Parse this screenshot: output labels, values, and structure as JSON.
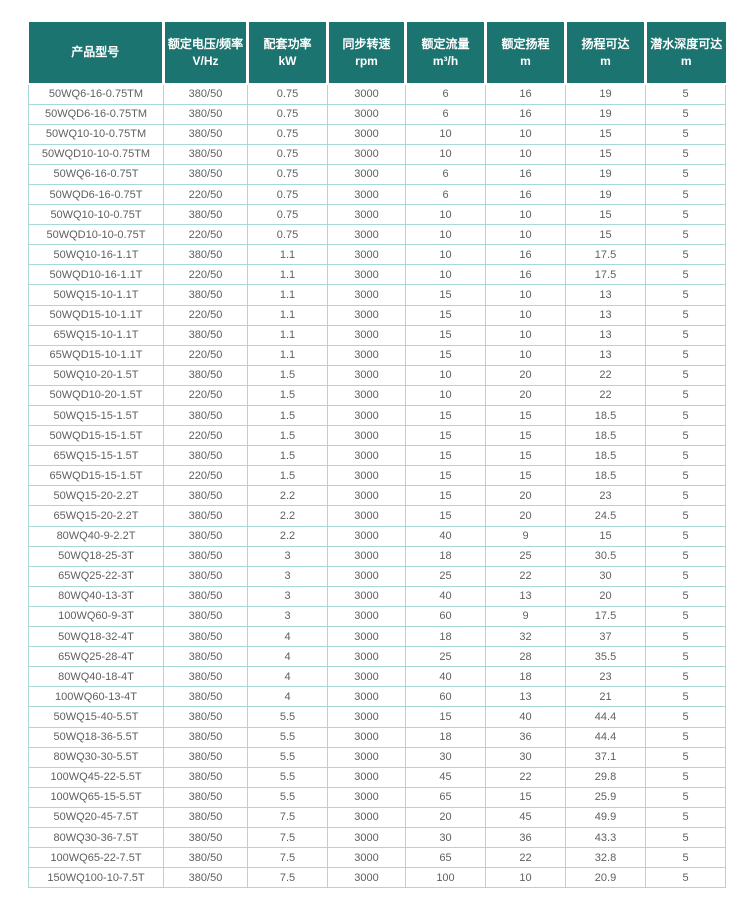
{
  "theme": {
    "header_bg": "#1b7470",
    "header_text": "#ffffff",
    "border_color": "#a9d9d7",
    "row_text": "#5d5f62",
    "page_bg": "#ffffff"
  },
  "table": {
    "columns": [
      {
        "label": "产品型号",
        "unit": ""
      },
      {
        "label": "额定电压/频率",
        "unit": "V/Hz"
      },
      {
        "label": "配套功率",
        "unit": "kW"
      },
      {
        "label": "同步转速",
        "unit": "rpm"
      },
      {
        "label": "额定流量",
        "unit": "m³/h"
      },
      {
        "label": "额定扬程",
        "unit": "m"
      },
      {
        "label": "扬程可达",
        "unit": "m"
      },
      {
        "label": "潜水深度可达",
        "unit": "m"
      }
    ],
    "rows": [
      [
        "50WQ6-16-0.75TM",
        "380/50",
        "0.75",
        "3000",
        "6",
        "16",
        "19",
        "5"
      ],
      [
        "50WQD6-16-0.75TM",
        "380/50",
        "0.75",
        "3000",
        "6",
        "16",
        "19",
        "5"
      ],
      [
        "50WQ10-10-0.75TM",
        "380/50",
        "0.75",
        "3000",
        "10",
        "10",
        "15",
        "5"
      ],
      [
        "50WQD10-10-0.75TM",
        "380/50",
        "0.75",
        "3000",
        "10",
        "10",
        "15",
        "5"
      ],
      [
        "50WQ6-16-0.75T",
        "380/50",
        "0.75",
        "3000",
        "6",
        "16",
        "19",
        "5"
      ],
      [
        "50WQD6-16-0.75T",
        "220/50",
        "0.75",
        "3000",
        "6",
        "16",
        "19",
        "5"
      ],
      [
        "50WQ10-10-0.75T",
        "380/50",
        "0.75",
        "3000",
        "10",
        "10",
        "15",
        "5"
      ],
      [
        "50WQD10-10-0.75T",
        "220/50",
        "0.75",
        "3000",
        "10",
        "10",
        "15",
        "5"
      ],
      [
        "50WQ10-16-1.1T",
        "380/50",
        "1.1",
        "3000",
        "10",
        "16",
        "17.5",
        "5"
      ],
      [
        "50WQD10-16-1.1T",
        "220/50",
        "1.1",
        "3000",
        "10",
        "16",
        "17.5",
        "5"
      ],
      [
        "50WQ15-10-1.1T",
        "380/50",
        "1.1",
        "3000",
        "15",
        "10",
        "13",
        "5"
      ],
      [
        "50WQD15-10-1.1T",
        "220/50",
        "1.1",
        "3000",
        "15",
        "10",
        "13",
        "5"
      ],
      [
        "65WQ15-10-1.1T",
        "380/50",
        "1.1",
        "3000",
        "15",
        "10",
        "13",
        "5"
      ],
      [
        "65WQD15-10-1.1T",
        "220/50",
        "1.1",
        "3000",
        "15",
        "10",
        "13",
        "5"
      ],
      [
        "50WQ10-20-1.5T",
        "380/50",
        "1.5",
        "3000",
        "10",
        "20",
        "22",
        "5"
      ],
      [
        "50WQD10-20-1.5T",
        "220/50",
        "1.5",
        "3000",
        "10",
        "20",
        "22",
        "5"
      ],
      [
        "50WQ15-15-1.5T",
        "380/50",
        "1.5",
        "3000",
        "15",
        "15",
        "18.5",
        "5"
      ],
      [
        "50WQD15-15-1.5T",
        "220/50",
        "1.5",
        "3000",
        "15",
        "15",
        "18.5",
        "5"
      ],
      [
        "65WQ15-15-1.5T",
        "380/50",
        "1.5",
        "3000",
        "15",
        "15",
        "18.5",
        "5"
      ],
      [
        "65WQD15-15-1.5T",
        "220/50",
        "1.5",
        "3000",
        "15",
        "15",
        "18.5",
        "5"
      ],
      [
        "50WQ15-20-2.2T",
        "380/50",
        "2.2",
        "3000",
        "15",
        "20",
        "23",
        "5"
      ],
      [
        "65WQ15-20-2.2T",
        "380/50",
        "2.2",
        "3000",
        "15",
        "20",
        "24.5",
        "5"
      ],
      [
        "80WQ40-9-2.2T",
        "380/50",
        "2.2",
        "3000",
        "40",
        "9",
        "15",
        "5"
      ],
      [
        "50WQ18-25-3T",
        "380/50",
        "3",
        "3000",
        "18",
        "25",
        "30.5",
        "5"
      ],
      [
        "65WQ25-22-3T",
        "380/50",
        "3",
        "3000",
        "25",
        "22",
        "30",
        "5"
      ],
      [
        "80WQ40-13-3T",
        "380/50",
        "3",
        "3000",
        "40",
        "13",
        "20",
        "5"
      ],
      [
        "100WQ60-9-3T",
        "380/50",
        "3",
        "3000",
        "60",
        "9",
        "17.5",
        "5"
      ],
      [
        "50WQ18-32-4T",
        "380/50",
        "4",
        "3000",
        "18",
        "32",
        "37",
        "5"
      ],
      [
        "65WQ25-28-4T",
        "380/50",
        "4",
        "3000",
        "25",
        "28",
        "35.5",
        "5"
      ],
      [
        "80WQ40-18-4T",
        "380/50",
        "4",
        "3000",
        "40",
        "18",
        "23",
        "5"
      ],
      [
        "100WQ60-13-4T",
        "380/50",
        "4",
        "3000",
        "60",
        "13",
        "21",
        "5"
      ],
      [
        "50WQ15-40-5.5T",
        "380/50",
        "5.5",
        "3000",
        "15",
        "40",
        "44.4",
        "5"
      ],
      [
        "50WQ18-36-5.5T",
        "380/50",
        "5.5",
        "3000",
        "18",
        "36",
        "44.4",
        "5"
      ],
      [
        "80WQ30-30-5.5T",
        "380/50",
        "5.5",
        "3000",
        "30",
        "30",
        "37.1",
        "5"
      ],
      [
        "100WQ45-22-5.5T",
        "380/50",
        "5.5",
        "3000",
        "45",
        "22",
        "29.8",
        "5"
      ],
      [
        "100WQ65-15-5.5T",
        "380/50",
        "5.5",
        "3000",
        "65",
        "15",
        "25.9",
        "5"
      ],
      [
        "50WQ20-45-7.5T",
        "380/50",
        "7.5",
        "3000",
        "20",
        "45",
        "49.9",
        "5"
      ],
      [
        "80WQ30-36-7.5T",
        "380/50",
        "7.5",
        "3000",
        "30",
        "36",
        "43.3",
        "5"
      ],
      [
        "100WQ65-22-7.5T",
        "380/50",
        "7.5",
        "3000",
        "65",
        "22",
        "32.8",
        "5"
      ],
      [
        "150WQ100-10-7.5T",
        "380/50",
        "7.5",
        "3000",
        "100",
        "10",
        "20.9",
        "5"
      ]
    ]
  }
}
